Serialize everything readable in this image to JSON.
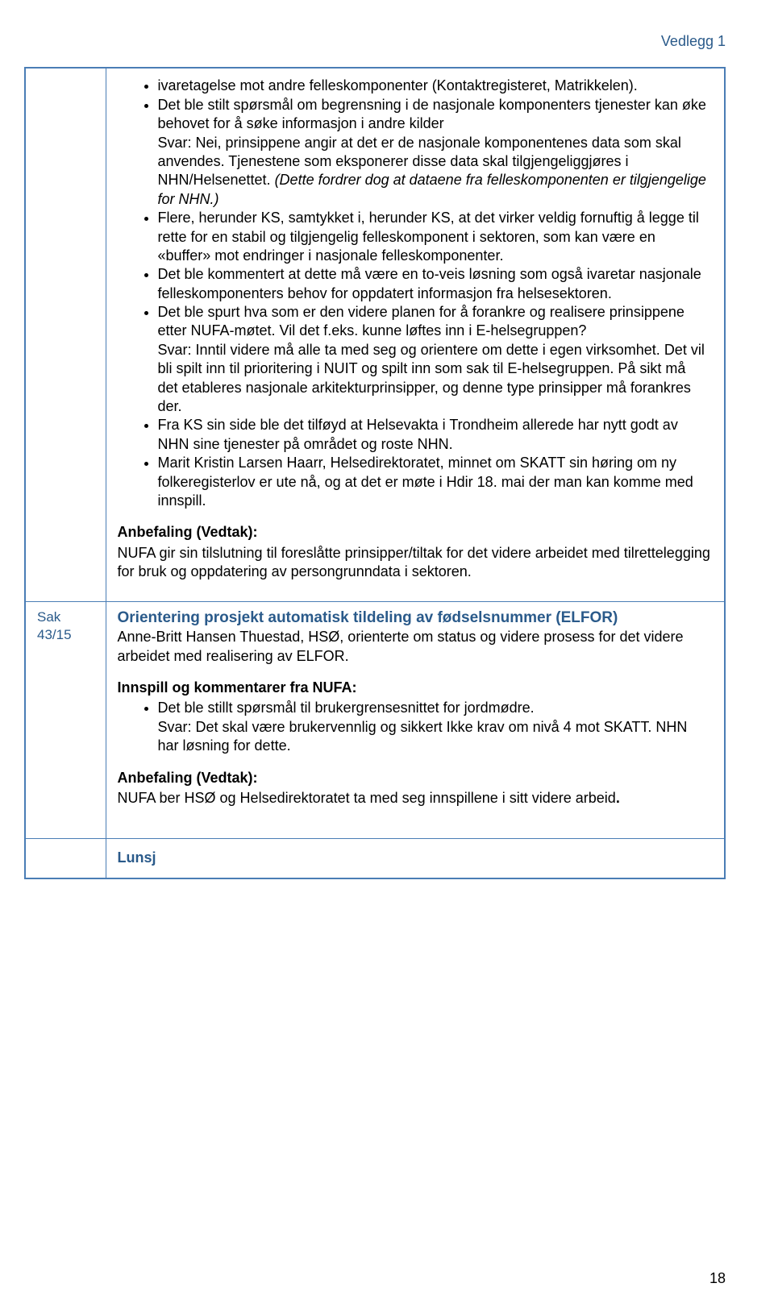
{
  "header": {
    "right": "Vedlegg 1"
  },
  "page_number": "18",
  "colors": {
    "border": "#4a7db5",
    "heading": "#2a5a8a",
    "text": "#000000",
    "background": "#ffffff"
  },
  "row1": {
    "bullets": [
      {
        "runs": [
          {
            "t": "ivaretagelse mot andre felleskomponenter (Kontaktregisteret, Matrikkelen)."
          }
        ]
      },
      {
        "runs": [
          {
            "t": "Det ble stilt spørsmål om begrensning i de nasjonale komponenters tjenester kan øke behovet for å søke informasjon i andre kilder"
          },
          {
            "t": "\nSvar: Nei, prinsippene angir at det er de nasjonale komponentenes data som skal anvendes. Tjenestene som eksponerer disse data skal tilgjengeliggjøres i NHN/Helsenettet. "
          },
          {
            "t": "(Dette fordrer dog at dataene fra felleskomponenten er tilgjengelige for NHN.)",
            "italic": true
          }
        ]
      },
      {
        "runs": [
          {
            "t": "Flere, herunder KS, samtykket i, herunder KS, at det virker veldig fornuftig å legge til rette for en stabil og tilgjengelig felleskomponent i sektoren, som kan være en «buffer»  mot endringer i nasjonale felleskomponenter."
          }
        ]
      },
      {
        "runs": [
          {
            "t": "Det ble kommentert at dette må være en to-veis løsning som også ivaretar nasjonale felleskomponenters behov for oppdatert informasjon fra helsesektoren."
          }
        ]
      },
      {
        "runs": [
          {
            "t": "Det ble spurt hva som er den videre planen for å forankre og realisere prinsippene etter NUFA-møtet. Vil det f.eks. kunne løftes inn i E-helsegruppen?"
          },
          {
            "t": "\nSvar: Inntil videre må alle ta med seg og orientere om dette i egen virksomhet. Det vil bli spilt inn til prioritering i NUIT og spilt inn som sak til E-helsegruppen. På sikt må det etableres nasjonale arkitekturprinsipper, og denne type prinsipper må forankres der."
          }
        ]
      },
      {
        "runs": [
          {
            "t": "Fra KS sin side ble det tilføyd at Helsevakta i Trondheim allerede har nytt godt av NHN sine tjenester på området og roste NHN."
          }
        ]
      },
      {
        "runs": [
          {
            "t": "Marit Kristin Larsen Haarr, Helsedirektoratet, minnet om SKATT sin høring om ny folkeregisterlov er ute nå, og at det er møte i Hdir 18. mai der man kan komme med innspill."
          }
        ]
      }
    ],
    "anbefaling_label": "Anbefaling (Vedtak):",
    "anbefaling_text": "NUFA gir sin tilslutning til foreslåtte prinsipper/tiltak for det videre arbeidet med tilrettelegging for bruk og oppdatering av persongrunndata i sektoren."
  },
  "row2": {
    "sak": "Sak 43/15",
    "title": "Orientering prosjekt automatisk tildeling av fødselsnummer (ELFOR)",
    "intro": "Anne-Britt Hansen Thuestad, HSØ, orienterte om status og videre prosess for det videre arbeidet med realisering av ELFOR.",
    "innspill_label": "Innspill og kommentarer fra NUFA:",
    "innspill_bullets": [
      {
        "runs": [
          {
            "t": "Det ble stillt spørsmål til brukergrensesnittet for jordmødre."
          },
          {
            "t": "\nSvar: Det skal være brukervennlig og sikkert Ikke krav om nivå 4 mot SKATT. NHN har løsning for dette."
          }
        ]
      }
    ],
    "anbefaling_label": "Anbefaling (Vedtak):",
    "anbefaling_text_pre": "NUFA ber HSØ og Helsedirektoratet ta med seg innspillene i sitt videre arbeid",
    "anbefaling_text_post": "."
  },
  "row3": {
    "title": "Lunsj"
  }
}
